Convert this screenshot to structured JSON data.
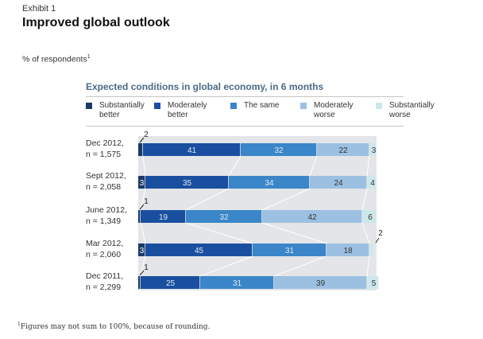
{
  "header": {
    "exhibit": "Exhibit 1",
    "title": "Improved global outlook",
    "unit": "% of respondents",
    "unit_footnote_mark": "1"
  },
  "footnote": {
    "mark": "1",
    "text": "Figures may not sum to 100%, because of rounding."
  },
  "colors": {
    "substantially_better": "#1b3a66",
    "moderately_better": "#1a4fa0",
    "the_same": "#3a86c8",
    "moderately_worse": "#9cc0e2",
    "substantially_worse": "#cde8ec",
    "track": "#e3e5e8",
    "title": "#4a6a88"
  },
  "chart_data": {
    "type": "bar",
    "orientation": "horizontal",
    "stacked": true,
    "title": "Expected conditions in global economy, in 6 months",
    "xlabel": "",
    "ylabel": "",
    "xlim": [
      0,
      100
    ],
    "grid": false,
    "legend_position": "top",
    "categories": [
      [
        "Dec 2012,",
        "n = 1,575"
      ],
      [
        "Sept 2012,",
        "n = 2,058"
      ],
      [
        "June 2012,",
        "n = 1,349"
      ],
      [
        "Mar 2012,",
        "n = 2,060"
      ],
      [
        "Dec 2011,",
        "n = 2,299"
      ]
    ],
    "series": [
      {
        "name": "Substantially better",
        "legend": [
          "Substantially",
          "better"
        ],
        "values": [
          2,
          3,
          1,
          3,
          1
        ]
      },
      {
        "name": "Moderately better",
        "legend": [
          "Moderately",
          "better"
        ],
        "values": [
          41,
          35,
          19,
          45,
          25
        ]
      },
      {
        "name": "The same",
        "legend": [
          "The same"
        ],
        "values": [
          32,
          34,
          32,
          31,
          31
        ]
      },
      {
        "name": "Moderately worse",
        "legend": [
          "Moderately",
          "worse"
        ],
        "values": [
          22,
          24,
          42,
          18,
          39
        ]
      },
      {
        "name": "Substantially worse",
        "legend": [
          "Substantially",
          "worse"
        ],
        "values": [
          3,
          4,
          6,
          2,
          5
        ]
      }
    ]
  }
}
